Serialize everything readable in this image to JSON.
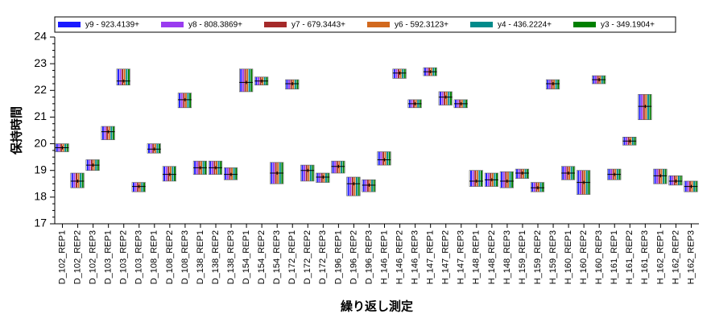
{
  "chart_data": {
    "type": "variability",
    "y_label": "保持時間",
    "x_label": "繰り返し測定",
    "ylim": [
      17,
      24
    ],
    "yticks": [
      17,
      18,
      19,
      20,
      21,
      22,
      23,
      24
    ],
    "series": [
      {
        "name": "y9 - 923.4139+",
        "color": "#1a1aff"
      },
      {
        "name": "y8 - 808.3869+",
        "color": "#9a3cf0"
      },
      {
        "name": "y7 - 679.3443+",
        "color": "#a52a2a"
      },
      {
        "name": "y6 - 592.3123+",
        "color": "#d2691e"
      },
      {
        "name": "y4 - 436.2224+",
        "color": "#008b8b"
      },
      {
        "name": "y3 - 349.1904+",
        "color": "#008000"
      }
    ],
    "categories": [
      "D_102_REP1",
      "D_102_REP2",
      "D_102_REP3",
      "D_103_REP1",
      "D_103_REP2",
      "D_103_REP3",
      "D_108_REP1",
      "D_108_REP2",
      "D_108_REP3",
      "D_138_REP1",
      "D_138_REP2",
      "D_138_REP3",
      "D_154_REP1",
      "D_154_REP2",
      "D_154_REP3",
      "D_172_REP1",
      "D_172_REP2",
      "D_172_REP3",
      "D_196_REP1",
      "D_196_REP2",
      "D_196_REP3",
      "H_146_REP1",
      "H_146_REP2",
      "H_146_REP3",
      "H_147_REP1",
      "H_147_REP2",
      "H_147_REP3",
      "H_148_REP1",
      "H_148_REP2",
      "H_148_REP3",
      "H_159_REP1",
      "H_159_REP2",
      "H_159_REP3",
      "H_160_REP1",
      "H_160_REP2",
      "H_160_REP3",
      "H_161_REP1",
      "H_161_REP2",
      "H_161_REP3",
      "H_162_REP1",
      "H_162_REP2",
      "H_162_REP3"
    ],
    "low": [
      19.7,
      18.35,
      19.0,
      20.15,
      22.2,
      18.2,
      19.65,
      18.6,
      21.35,
      18.85,
      18.85,
      18.65,
      21.95,
      22.2,
      18.5,
      22.05,
      18.6,
      18.55,
      18.9,
      18.05,
      18.2,
      19.2,
      22.45,
      21.35,
      22.55,
      21.45,
      21.35,
      18.4,
      18.4,
      18.35,
      18.7,
      18.2,
      22.05,
      18.65,
      18.1,
      22.25,
      18.65,
      19.95,
      20.9,
      18.5,
      18.45,
      18.2
    ],
    "high": [
      20.0,
      18.9,
      19.4,
      20.65,
      22.8,
      18.55,
      20.0,
      19.15,
      21.9,
      19.35,
      19.35,
      19.1,
      22.8,
      22.5,
      19.3,
      22.4,
      19.2,
      18.9,
      19.35,
      18.75,
      18.65,
      19.7,
      22.8,
      21.65,
      22.85,
      21.95,
      21.65,
      19.0,
      18.9,
      18.95,
      19.05,
      18.55,
      22.4,
      19.15,
      19.0,
      22.55,
      19.05,
      20.25,
      21.85,
      19.05,
      18.8,
      18.6
    ],
    "mean": [
      19.85,
      18.6,
      19.2,
      20.45,
      22.35,
      18.4,
      19.8,
      18.85,
      21.65,
      19.1,
      19.1,
      18.85,
      22.3,
      22.35,
      18.9,
      22.25,
      19.0,
      18.75,
      19.15,
      18.5,
      18.45,
      19.4,
      22.65,
      21.5,
      22.7,
      21.75,
      21.5,
      18.6,
      18.65,
      18.6,
      18.9,
      18.35,
      22.25,
      18.9,
      18.55,
      22.4,
      18.85,
      20.1,
      21.4,
      18.8,
      18.6,
      18.4
    ]
  }
}
